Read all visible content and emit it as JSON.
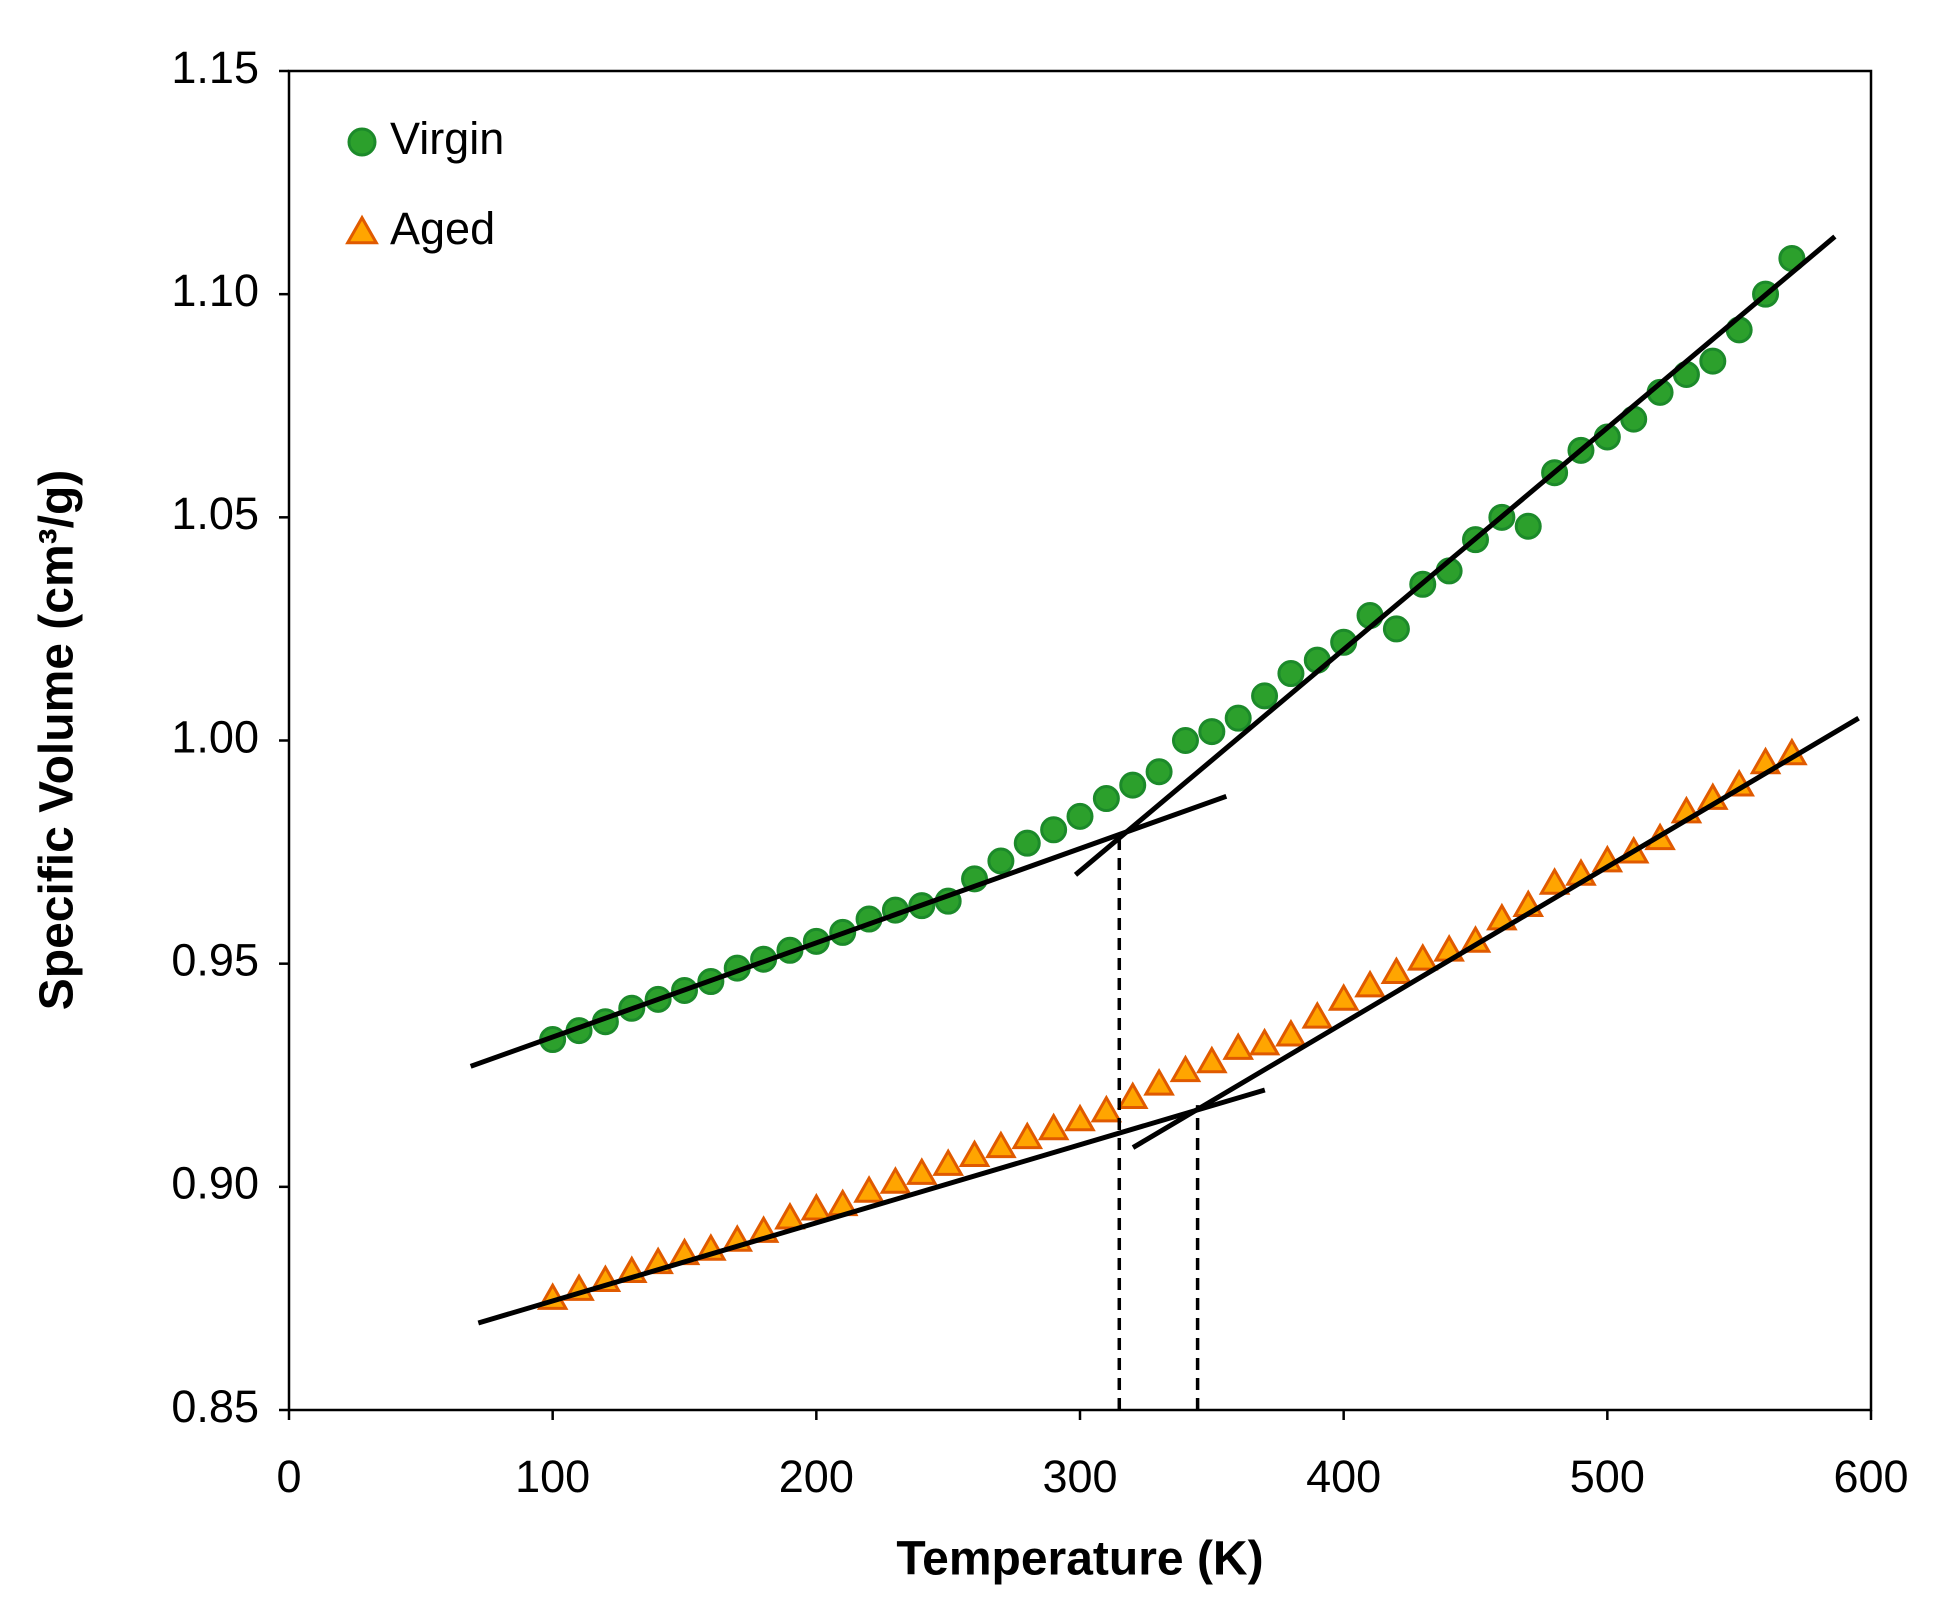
{
  "chart_data": {
    "type": "scatter",
    "x_label": "Temperature (K)",
    "y_label": "Specific Volume (cm³/g)",
    "xlim": [
      0,
      600
    ],
    "xticks": [
      0,
      100,
      200,
      300,
      400,
      500,
      600
    ],
    "ylim": [
      0.85,
      1.15
    ],
    "yticks": [
      0.85,
      {
        "value": 0.9,
        "label": "0.90"
      },
      0.95,
      {
        "value": 1.0,
        "label": "1.00"
      },
      1.05,
      {
        "value": 1.1,
        "label": "1.10"
      },
      1.15
    ],
    "legend": "top-left",
    "series": [
      {
        "name": "Virgin",
        "marker": "circle",
        "color": "#2ca02c",
        "edge_color": "#1c8a2a",
        "x": [
          100,
          110,
          120,
          130,
          140,
          150,
          160,
          170,
          180,
          190,
          200,
          210,
          220,
          230,
          240,
          250,
          260,
          270,
          280,
          290,
          300,
          310,
          320,
          330,
          340,
          350,
          360,
          370,
          380,
          390,
          400,
          410,
          420,
          430,
          440,
          450,
          460,
          470,
          480,
          490,
          500,
          510,
          520,
          530,
          540,
          550,
          560,
          570
        ],
        "values": [
          0.933,
          0.935,
          0.937,
          0.94,
          0.942,
          0.944,
          0.946,
          0.949,
          0.951,
          0.953,
          0.955,
          0.957,
          0.96,
          0.962,
          0.963,
          0.964,
          0.969,
          0.973,
          0.977,
          0.98,
          0.983,
          0.987,
          0.99,
          0.993,
          1.0,
          1.002,
          1.005,
          1.01,
          1.015,
          1.018,
          1.022,
          1.028,
          1.025,
          1.035,
          1.038,
          1.045,
          1.05,
          1.048,
          1.06,
          1.065,
          1.068,
          1.072,
          1.078,
          1.082,
          1.085,
          1.092,
          1.1,
          1.108
        ]
      },
      {
        "name": "Aged",
        "marker": "triangle",
        "color": "#ffa500",
        "edge_color": "#e05a00",
        "x": [
          100,
          110,
          120,
          130,
          140,
          150,
          160,
          170,
          180,
          190,
          200,
          210,
          220,
          230,
          240,
          250,
          260,
          270,
          280,
          290,
          300,
          310,
          320,
          330,
          340,
          350,
          360,
          370,
          380,
          390,
          400,
          410,
          420,
          430,
          440,
          450,
          460,
          470,
          480,
          490,
          500,
          510,
          520,
          530,
          540,
          550,
          560,
          570
        ],
        "values": [
          0.875,
          0.877,
          0.879,
          0.881,
          0.883,
          0.885,
          0.886,
          0.888,
          0.89,
          0.893,
          0.895,
          0.896,
          0.899,
          0.901,
          0.903,
          0.905,
          0.907,
          0.909,
          0.911,
          0.913,
          0.915,
          0.917,
          0.92,
          0.923,
          0.926,
          0.928,
          0.931,
          0.932,
          0.934,
          0.938,
          0.942,
          0.945,
          0.948,
          0.951,
          0.953,
          0.955,
          0.96,
          0.963,
          0.968,
          0.97,
          0.973,
          0.975,
          0.978,
          0.984,
          0.987,
          0.99,
          0.995,
          0.997
        ]
      }
    ],
    "fit_lines": [
      {
        "x": [
          68.9,
          355.5
        ],
        "y": [
          0.927,
          0.9875
        ]
      },
      {
        "x": [
          298.3,
          586.3
        ],
        "y": [
          0.9699,
          1.1129
        ]
      },
      {
        "x": [
          71.8,
          370.1
        ],
        "y": [
          0.8695,
          0.9217
        ]
      },
      {
        "x": [
          320.1,
          595.3
        ],
        "y": [
          0.9088,
          1.005
        ]
      }
    ],
    "dashed_lines": [
      {
        "x": [
          314.9,
          314.9
        ],
        "y": [
          0.85,
          0.9797
        ]
      },
      {
        "x": [
          344.6,
          344.6
        ],
        "y": [
          0.85,
          0.9183
        ]
      }
    ]
  }
}
